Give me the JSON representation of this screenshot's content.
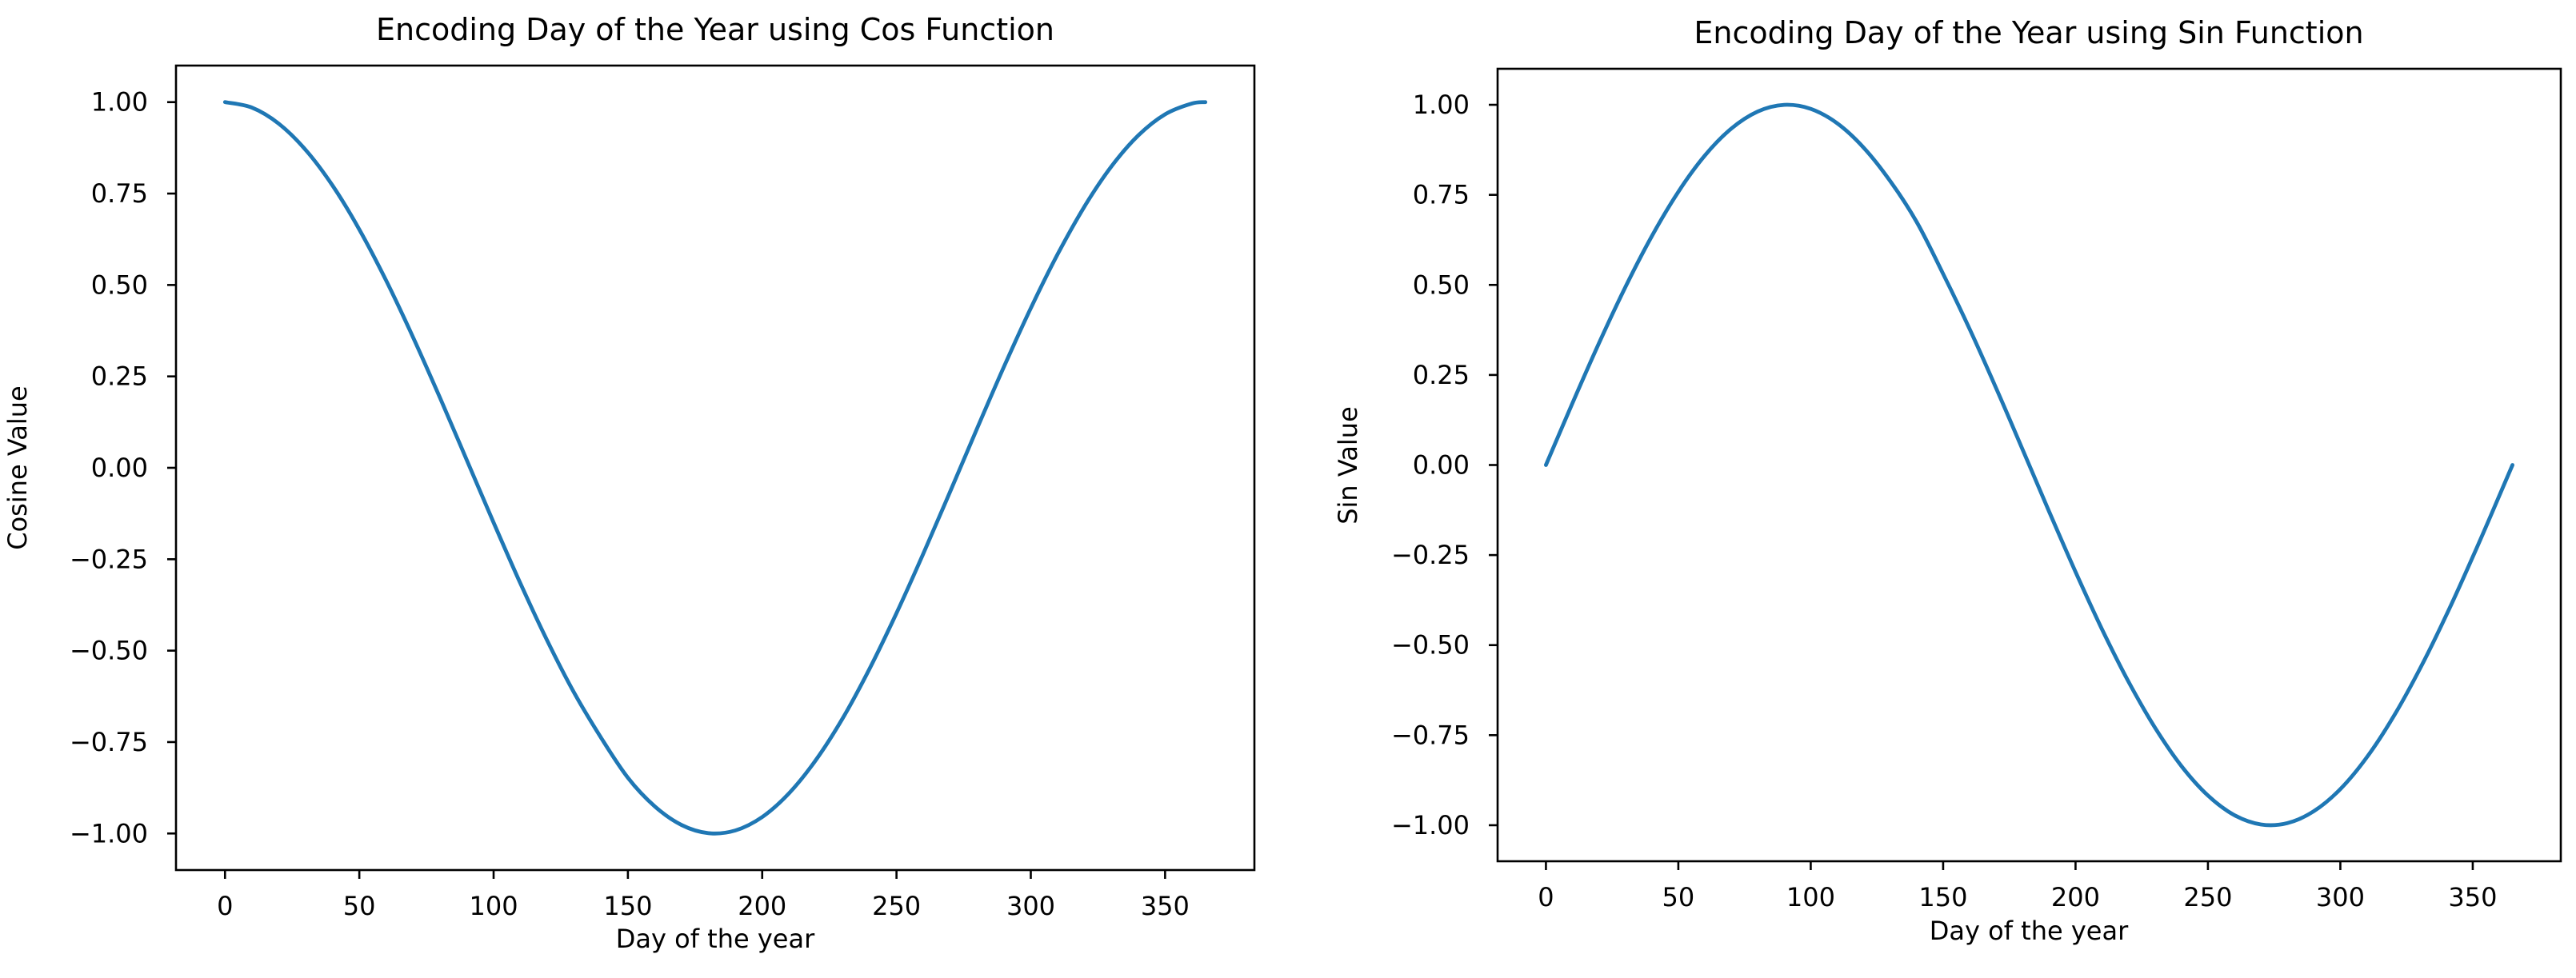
{
  "figure": {
    "background": "#ffffff",
    "text_color": "#000000",
    "axis_color": "#000000"
  },
  "chart_data": [
    {
      "type": "line",
      "title": "Encoding Day of the Year using Cos Function",
      "xlabel": "Day of the year",
      "ylabel": "Cosine Value",
      "xlim": [
        -18.25,
        383.25
      ],
      "ylim": [
        -1.1,
        1.1
      ],
      "grid": false,
      "legend": "none",
      "color": "#1f77b4",
      "xticks": {
        "values": [
          0,
          50,
          100,
          150,
          200,
          250,
          300,
          350
        ],
        "labels": [
          "0",
          "50",
          "100",
          "150",
          "200",
          "250",
          "300",
          "350"
        ]
      },
      "yticks": {
        "values": [
          1.0,
          0.75,
          0.5,
          0.25,
          0.0,
          -0.25,
          -0.5,
          -0.75,
          -1.0
        ],
        "labels": [
          "1.00",
          "0.75",
          "0.50",
          "0.25",
          "0.00",
          "−0.25",
          "−0.50",
          "−0.75",
          "−1.00"
        ]
      },
      "series": [
        {
          "x": [
            0,
            10,
            20,
            30,
            40,
            50,
            60,
            70,
            80,
            90,
            100,
            110,
            120,
            130,
            140,
            150,
            160,
            170,
            180,
            190,
            200,
            210,
            220,
            230,
            240,
            250,
            260,
            270,
            280,
            290,
            300,
            310,
            320,
            330,
            340,
            350,
            360,
            365
          ],
          "y": [
            1.0,
            0.9852,
            0.9413,
            0.8696,
            0.7722,
            0.6518,
            0.5121,
            0.3572,
            0.1921,
            0.0215,
            -0.1499,
            -0.3166,
            -0.4733,
            -0.6152,
            -0.738,
            -0.8477,
            -0.9259,
            -0.9769,
            -0.9991,
            -0.9917,
            -0.955,
            -0.89,
            -0.7989,
            -0.6845,
            -0.549,
            -0.3975,
            -0.2345,
            -0.0645,
            0.1074,
            0.2761,
            0.4366,
            0.5843,
            0.7147,
            0.824,
            0.9088,
            0.9668,
            0.9963,
            1.0
          ]
        }
      ]
    },
    {
      "type": "line",
      "title": "Encoding Day of the Year using Sin Function",
      "xlabel": "Day of the year",
      "ylabel": "Sin Value",
      "xlim": [
        -18.25,
        383.25
      ],
      "ylim": [
        -1.1,
        1.1
      ],
      "grid": false,
      "legend": "none",
      "color": "#1f77b4",
      "xticks": {
        "values": [
          0,
          50,
          100,
          150,
          200,
          250,
          300,
          350
        ],
        "labels": [
          "0",
          "50",
          "100",
          "150",
          "200",
          "250",
          "300",
          "350"
        ]
      },
      "yticks": {
        "values": [
          1.0,
          0.75,
          0.5,
          0.25,
          0.0,
          -0.25,
          -0.5,
          -0.75,
          -1.0
        ],
        "labels": [
          "1.00",
          "0.75",
          "0.50",
          "0.25",
          "0.00",
          "−0.25",
          "−0.50",
          "−0.75",
          "−1.00"
        ]
      },
      "series": [
        {
          "x": [
            0,
            10,
            20,
            30,
            40,
            50,
            60,
            70,
            80,
            90,
            100,
            110,
            120,
            130,
            140,
            150,
            160,
            170,
            180,
            190,
            200,
            210,
            220,
            230,
            240,
            250,
            260,
            270,
            280,
            290,
            300,
            310,
            320,
            330,
            340,
            350,
            360,
            365
          ],
          "y": [
            0.0,
            0.1713,
            0.3376,
            0.4938,
            0.6354,
            0.7584,
            0.859,
            0.934,
            0.9814,
            0.9998,
            0.9887,
            0.9486,
            0.8809,
            0.7884,
            0.6748,
            0.5305,
            0.3777,
            0.2136,
            0.043,
            -0.1287,
            -0.2967,
            -0.456,
            -0.6014,
            -0.729,
            -0.8359,
            -0.9176,
            -0.9721,
            -0.9979,
            -0.9942,
            -0.9611,
            -0.8997,
            -0.8115,
            -0.6994,
            -0.5666,
            -0.4172,
            -0.2554,
            -0.0859,
            0.0
          ]
        }
      ]
    }
  ]
}
